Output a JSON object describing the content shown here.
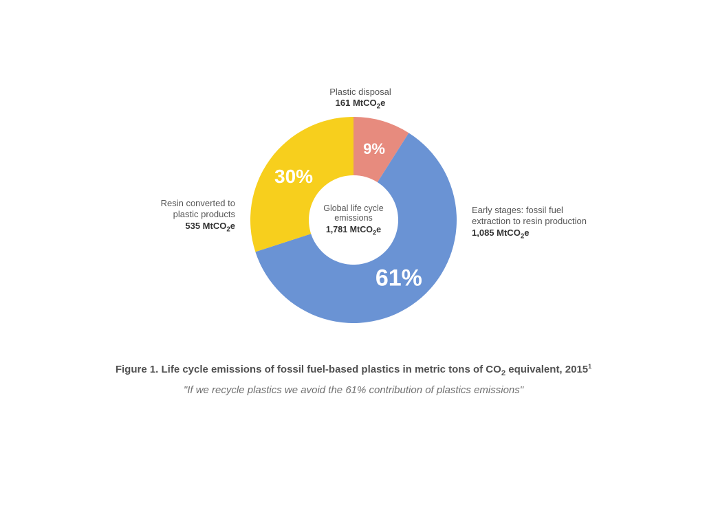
{
  "chart": {
    "type": "donut",
    "outer_radius": 150,
    "inner_radius": 65,
    "start_angle_deg": -90,
    "background_color": "#ffffff",
    "slices": [
      {
        "key": "disposal",
        "percent": 9,
        "color": "#e78b7e",
        "pct_label": "9%",
        "pct_fontsize": 22,
        "label_lines": [
          "Plastic disposal"
        ],
        "value_html": "161 MtCO<sub>2</sub>e",
        "label_side": "top"
      },
      {
        "key": "early",
        "percent": 61,
        "color": "#6a93d4",
        "pct_label": "61%",
        "pct_fontsize": 34,
        "label_lines": [
          "Early stages: fossil fuel",
          "extraction to resin production"
        ],
        "value_html": "1,085 MtCO<sub>2</sub>e",
        "label_side": "right"
      },
      {
        "key": "resin",
        "percent": 30,
        "color": "#f7cf1d",
        "pct_label": "30%",
        "pct_fontsize": 28,
        "label_lines": [
          "Resin converted to",
          "plastic products"
        ],
        "value_html": "535 MtCO<sub>2</sub>e",
        "label_side": "left"
      }
    ],
    "center": {
      "title": "Global life cycle emissions",
      "value_html": "1,781 MtCO<sub>2</sub>e"
    },
    "label_fontsize": 13,
    "label_color": "#555555",
    "label_value_color": "#333333"
  },
  "caption": {
    "title_html": "Figure 1. Life cycle emissions of fossil fuel-based plastics in metric tons of CO<sub>2</sub> equivalent, 2015<sup>1</sup>",
    "subtitle": "\"If we recycle plastics we avoid the 61% contribution of plastics emissions\"",
    "title_fontsize": 15,
    "title_color": "#505050",
    "subtitle_fontsize": 15,
    "subtitle_color": "#707070"
  }
}
